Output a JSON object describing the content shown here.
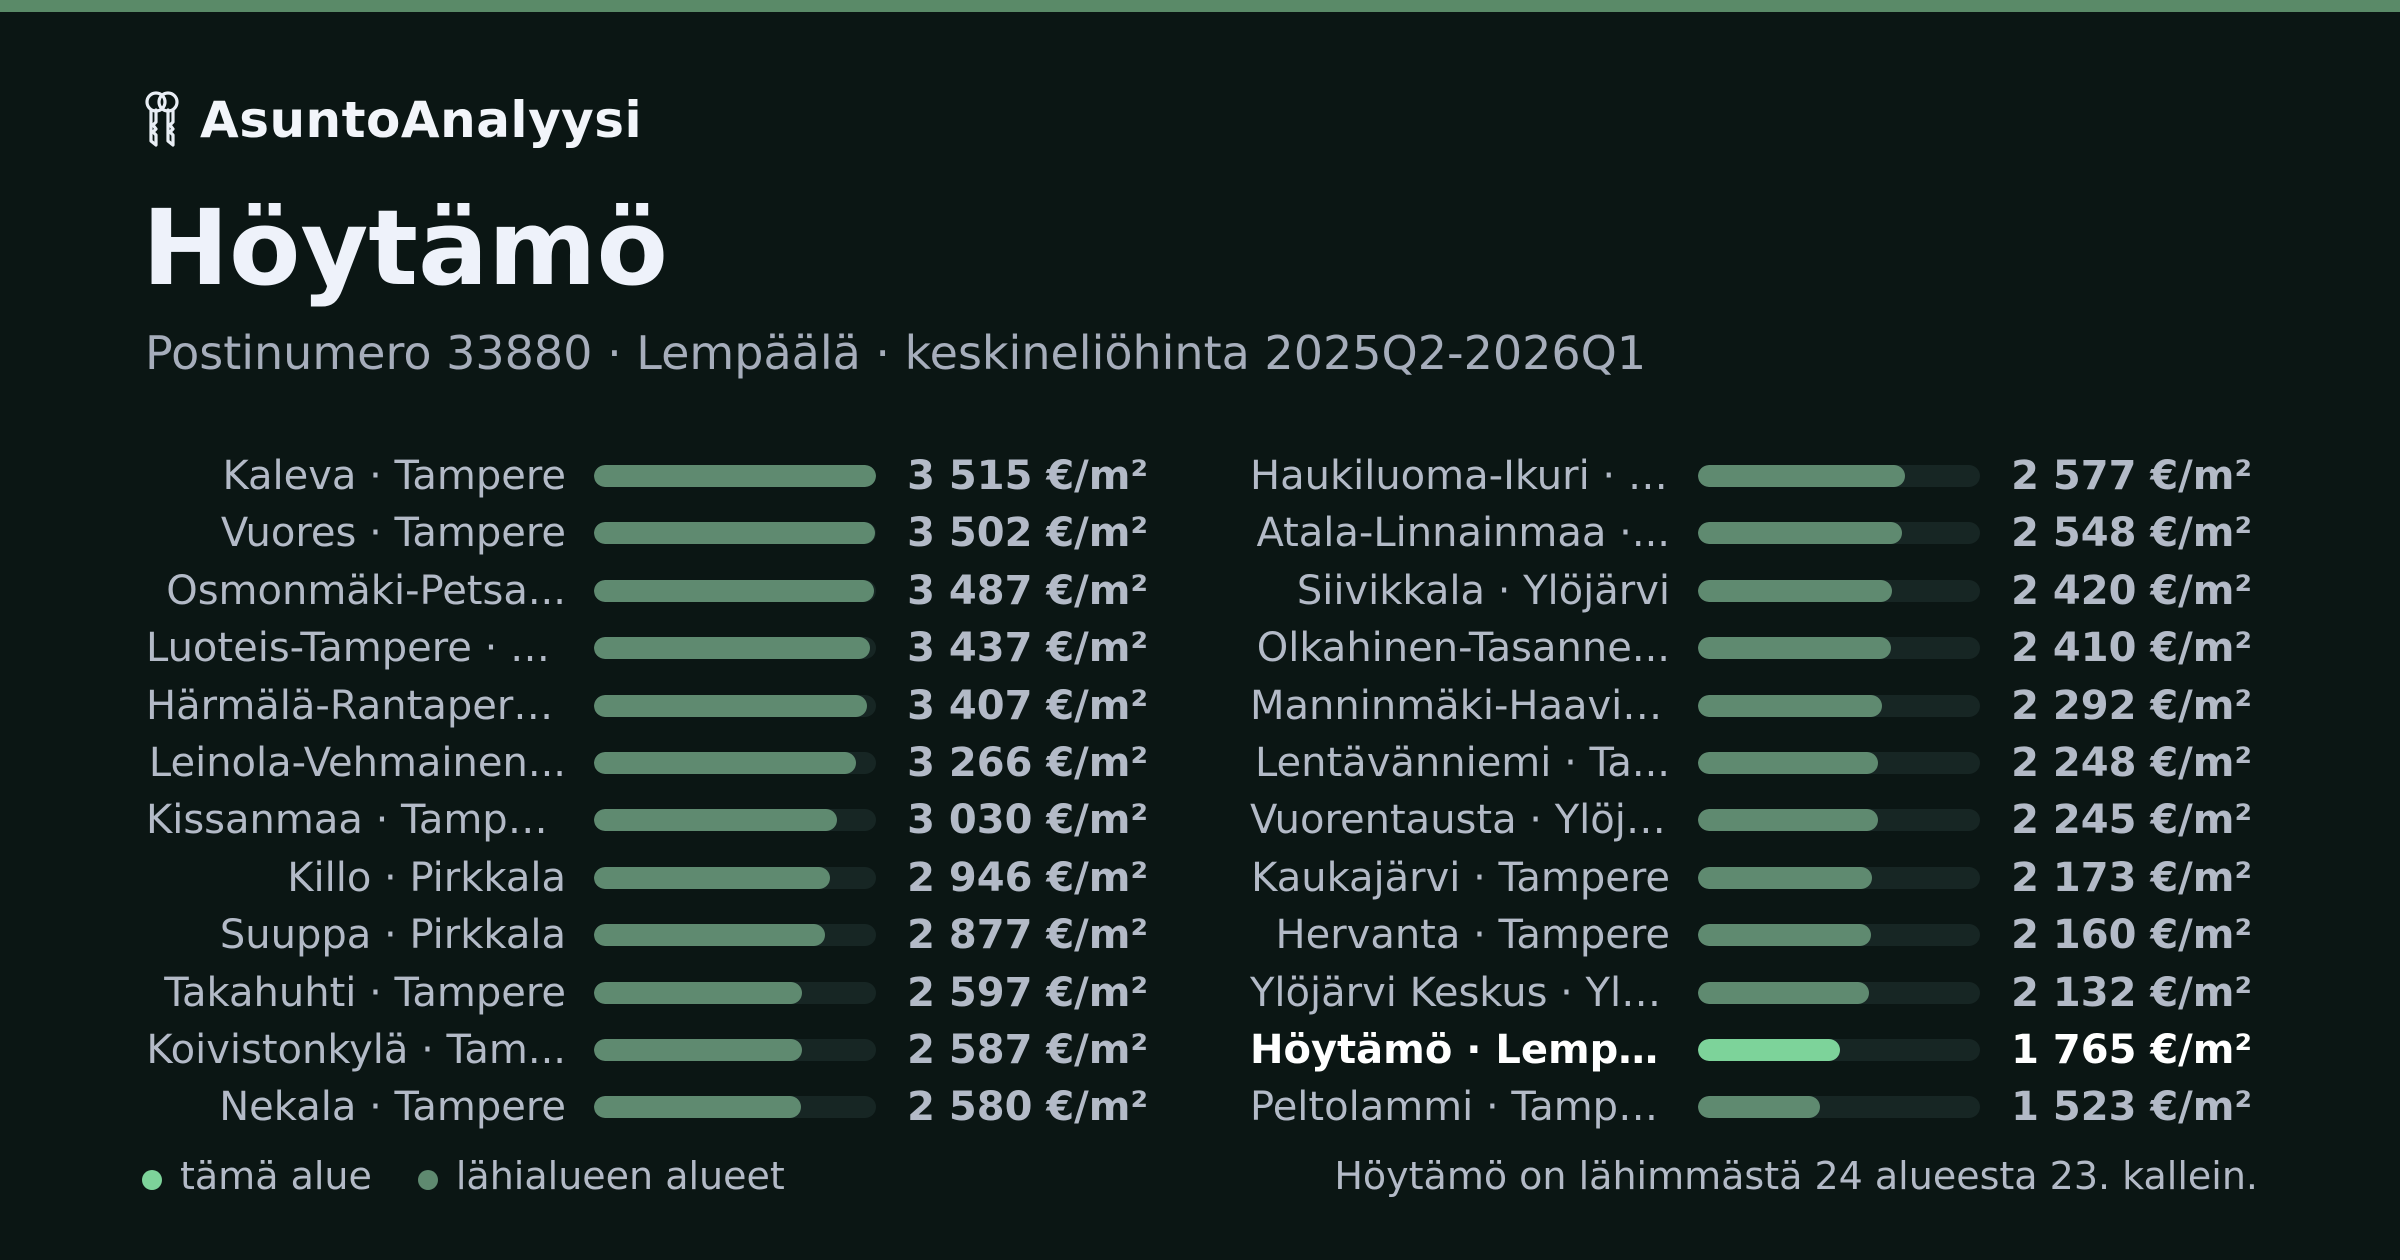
{
  "header": {
    "brand_name": "AsuntoAnalyysi",
    "brand_icon": "keys-icon",
    "title": "Höytämö",
    "subtitle": "Postinumero 33880 · Lempäälä · keskineliöhinta 2025Q2-2026Q1"
  },
  "colors": {
    "background": "#0b1614",
    "top_bar": "#5a8a68",
    "this_area": "#7dd39a",
    "nearby_areas": "#5f8a70"
  },
  "bar_scale_max": 3515,
  "columns": [
    [
      {
        "name": "Kaleva · Tampere",
        "price_text": "3 515 €/m²",
        "value": 3515
      },
      {
        "name": "Vuores · Tampere",
        "price_text": "3 502 €/m²",
        "value": 3502
      },
      {
        "name": "Osmonmäki-Petsa...",
        "price_text": "3 487 €/m²",
        "value": 3487
      },
      {
        "name": "Luoteis-Tampere · T...",
        "price_text": "3 437 €/m²",
        "value": 3437
      },
      {
        "name": "Härmälä-Rantaperk...",
        "price_text": "3 407 €/m²",
        "value": 3407
      },
      {
        "name": "Leinola-Vehmainen...",
        "price_text": "3 266 €/m²",
        "value": 3266
      },
      {
        "name": "Kissanmaa · Tampere",
        "price_text": "3 030 €/m²",
        "value": 3030
      },
      {
        "name": "Killo · Pirkkala",
        "price_text": "2 946 €/m²",
        "value": 2946
      },
      {
        "name": "Suuppa · Pirkkala",
        "price_text": "2 877 €/m²",
        "value": 2877
      },
      {
        "name": "Takahuhti · Tampere",
        "price_text": "2 597 €/m²",
        "value": 2597
      },
      {
        "name": "Koivistonkylä · Tam...",
        "price_text": "2 587 €/m²",
        "value": 2587
      },
      {
        "name": "Nekala · Tampere",
        "price_text": "2 580 €/m²",
        "value": 2580
      }
    ],
    [
      {
        "name": "Haukiluoma-Ikuri · T...",
        "price_text": "2 577 €/m²",
        "value": 2577
      },
      {
        "name": "Atala-Linnainmaa ·...",
        "price_text": "2 548 €/m²",
        "value": 2548
      },
      {
        "name": "Siivikkala · Ylöjärvi",
        "price_text": "2 420 €/m²",
        "value": 2420
      },
      {
        "name": "Olkahinen-Tasanne...",
        "price_text": "2 410 €/m²",
        "value": 2410
      },
      {
        "name": "Manninmäki-Haavis...",
        "price_text": "2 292 €/m²",
        "value": 2292
      },
      {
        "name": "Lentävänniemi · Ta...",
        "price_text": "2 248 €/m²",
        "value": 2248
      },
      {
        "name": "Vuorentausta · Ylöjä...",
        "price_text": "2 245 €/m²",
        "value": 2245
      },
      {
        "name": "Kaukajärvi · Tampere",
        "price_text": "2 173 €/m²",
        "value": 2173
      },
      {
        "name": "Hervanta · Tampere",
        "price_text": "2 160 €/m²",
        "value": 2160
      },
      {
        "name": "Ylöjärvi Keskus · Ylö...",
        "price_text": "2 132 €/m²",
        "value": 2132
      },
      {
        "name": "Höytämö · Lempäälä",
        "price_text": "1 765 €/m²",
        "value": 1765,
        "current": true
      },
      {
        "name": "Peltolammi · Tampe...",
        "price_text": "1 523 €/m²",
        "value": 1523
      }
    ]
  ],
  "legend": {
    "this_area": "tämä alue",
    "nearby_areas": "lähialueen alueet"
  },
  "footnote": "Höytämö on lähimmästä 24 alueesta 23. kallein."
}
